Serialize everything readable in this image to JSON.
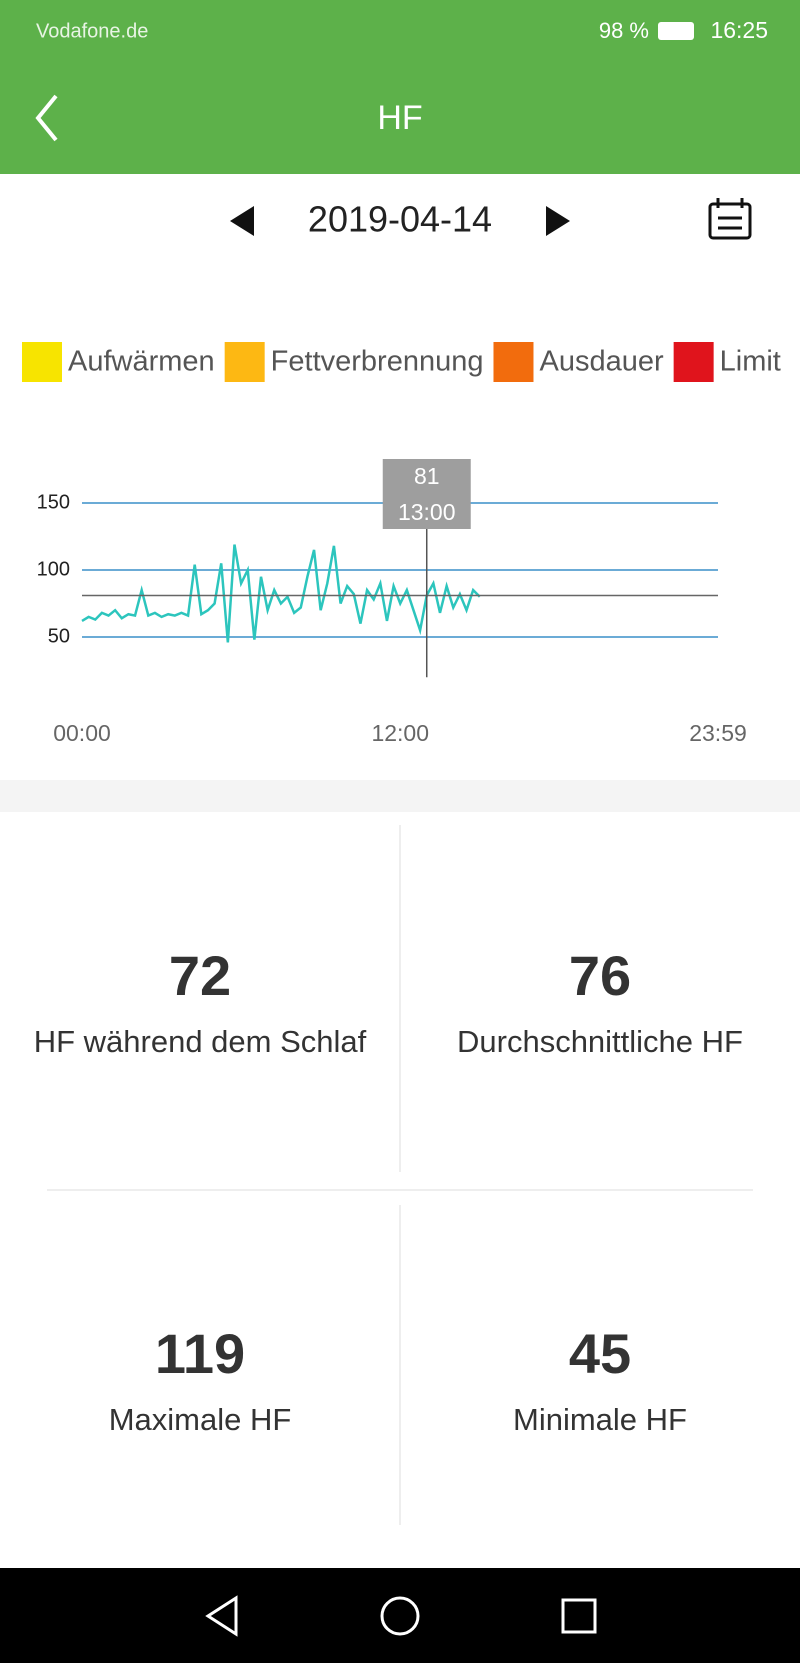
{
  "status_bar": {
    "carrier": "Vodafone.de",
    "battery": "98 %",
    "time": "16:25"
  },
  "header": {
    "title": "HF"
  },
  "date_nav": {
    "date": "2019-04-14"
  },
  "chart_data": {
    "type": "line",
    "legend": [
      {
        "name": "Aufwärmen",
        "color": "#f7e400"
      },
      {
        "name": "Fettverbrennung",
        "color": "#fdb813"
      },
      {
        "name": "Ausdauer",
        "color": "#f26c0d"
      },
      {
        "name": "Limit",
        "color": "#e0141c"
      }
    ],
    "x": [
      0,
      15,
      30,
      45,
      60,
      75,
      90,
      105,
      120,
      135,
      150,
      165,
      180,
      195,
      210,
      225,
      240,
      255,
      270,
      285,
      300,
      315,
      330,
      345,
      360,
      375,
      390,
      405,
      420,
      435,
      450,
      465,
      480,
      495,
      510,
      525,
      540,
      555,
      570,
      585,
      600,
      615,
      630,
      645,
      660,
      675,
      690,
      705,
      720,
      735,
      750,
      765,
      780,
      795,
      810,
      825,
      840,
      855,
      870,
      885,
      900
    ],
    "series": [
      {
        "color": "#2cc5bd",
        "values": [
          62,
          65,
          63,
          68,
          66,
          70,
          64,
          67,
          66,
          85,
          66,
          68,
          65,
          67,
          66,
          68,
          66,
          104,
          67,
          70,
          75,
          105,
          46,
          119,
          90,
          100,
          48,
          95,
          70,
          85,
          75,
          80,
          68,
          72,
          95,
          115,
          70,
          90,
          118,
          75,
          88,
          82,
          60,
          85,
          78,
          90,
          62,
          88,
          75,
          85,
          70,
          55,
          81,
          90,
          68,
          88,
          72,
          82,
          70,
          85,
          80
        ]
      }
    ],
    "xlim": [
      0,
      1439
    ],
    "xticks": [
      {
        "value": 0,
        "label": "00:00"
      },
      {
        "value": 720,
        "label": "12:00"
      },
      {
        "value": 1439,
        "label": "23:59"
      }
    ],
    "ylim": [
      20,
      160
    ],
    "yticks": [
      50,
      100,
      150
    ],
    "grid": true,
    "cursor": {
      "x": {
        "value": 780,
        "label": "13:00"
      },
      "value": 81
    }
  },
  "stats": [
    {
      "value": 72,
      "label": "HF während dem Schlaf"
    },
    {
      "value": 76,
      "label": "Durchschnittliche HF"
    },
    {
      "value": 119,
      "label": "Maximale HF"
    },
    {
      "value": 45,
      "label": "Minimale HF"
    }
  ]
}
